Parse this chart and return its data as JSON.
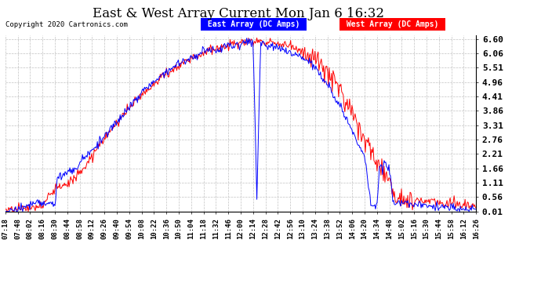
{
  "title": "East & West Array Current Mon Jan 6 16:32",
  "copyright": "Copyright 2020 Cartronics.com",
  "legend_east": "East Array (DC Amps)",
  "legend_west": "West Array (DC Amps)",
  "east_color": "#0000ff",
  "west_color": "#ff0000",
  "bg_color": "#ffffff",
  "plot_bg_color": "#ffffff",
  "grid_color": "#aaaaaa",
  "yticks": [
    0.01,
    0.56,
    1.11,
    1.66,
    2.21,
    2.76,
    3.31,
    3.86,
    4.41,
    4.96,
    5.51,
    6.06,
    6.6
  ],
  "ylim": [
    0.0,
    6.75
  ],
  "xtick_labels": [
    "07:18",
    "07:48",
    "08:02",
    "08:16",
    "08:30",
    "08:44",
    "08:58",
    "09:12",
    "09:26",
    "09:40",
    "09:54",
    "10:08",
    "10:22",
    "10:36",
    "10:50",
    "11:04",
    "11:18",
    "11:32",
    "11:46",
    "12:00",
    "12:14",
    "12:28",
    "12:42",
    "12:56",
    "13:10",
    "13:24",
    "13:38",
    "13:52",
    "14:06",
    "14:20",
    "14:34",
    "14:48",
    "15:02",
    "15:16",
    "15:30",
    "15:44",
    "15:58",
    "16:12",
    "16:26"
  ],
  "figsize": [
    6.9,
    3.75
  ],
  "dpi": 100
}
